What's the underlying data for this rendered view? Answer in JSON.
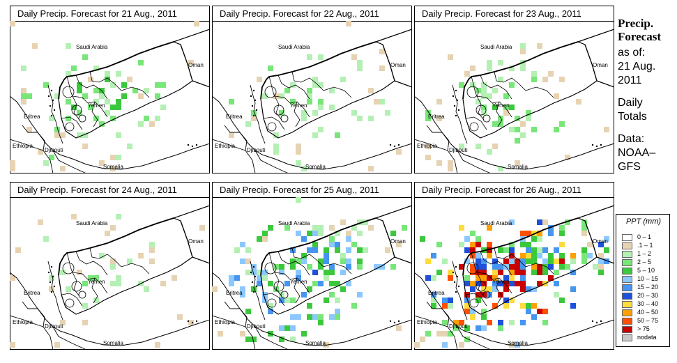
{
  "panels": [
    {
      "title": "Daily Precip. Forecast for  21 Aug., 2011",
      "intensity": 0.3,
      "seed": 11,
      "east": 0.06
    },
    {
      "title": "Daily Precip. Forecast for  22 Aug., 2011",
      "intensity": 0.22,
      "seed": 23,
      "east": 0.05
    },
    {
      "title": "Daily Precip. Forecast for  23 Aug., 2011",
      "intensity": 0.24,
      "seed": 37,
      "east": 0.1
    },
    {
      "title": "Daily Precip. Forecast for  24 Aug., 2011",
      "intensity": 0.16,
      "seed": 41,
      "east": 0.05
    },
    {
      "title": "Daily Precip. Forecast for  25 Aug., 2011",
      "intensity": 0.48,
      "seed": 53,
      "east": 0.35
    },
    {
      "title": "Daily Precip. Forecast for  26 Aug., 2011",
      "intensity": 0.85,
      "seed": 67,
      "east": 0.55
    }
  ],
  "map_labels": {
    "saudi": "Saudi Arabia",
    "oman": "Oman",
    "yemen": "Yemen",
    "eritrea": "Eritrea",
    "ethiopia": "Ethiopia",
    "djibouti": "Djibouti",
    "somalia": "Somalia"
  },
  "sidebar": {
    "title_line1": "Precip.",
    "title_line2": "Forecast",
    "asof_line1": "as of:",
    "asof_line2": "21 Aug.",
    "asof_line3": "2011",
    "totals_line1": "Daily",
    "totals_line2": "Totals",
    "source_line1": "Data:",
    "source_line2": "NOAA–",
    "source_line3": "GFS"
  },
  "legend": {
    "title": "PPT (mm)",
    "items": [
      {
        "label": "0 – 1",
        "color": "#ffffff"
      },
      {
        "label": ".1 – 1",
        "color": "#e6d3b3"
      },
      {
        "label": "1 – 2",
        "color": "#b4f0b4"
      },
      {
        "label": "2 – 5",
        "color": "#78e678"
      },
      {
        "label": "5 – 10",
        "color": "#3cc83c"
      },
      {
        "label": "10 – 15",
        "color": "#8cc8ff"
      },
      {
        "label": "15 – 20",
        "color": "#4696f0"
      },
      {
        "label": "20 – 30",
        "color": "#1e50dc"
      },
      {
        "label": "30 – 40",
        "color": "#ffdc3c"
      },
      {
        "label": "40 – 50",
        "color": "#ffa000"
      },
      {
        "label": "50 – 75",
        "color": "#ff5000"
      },
      {
        "label": "> 75",
        "color": "#c80000"
      },
      {
        "label": "nodata",
        "color": "#c8c8c8"
      }
    ]
  }
}
